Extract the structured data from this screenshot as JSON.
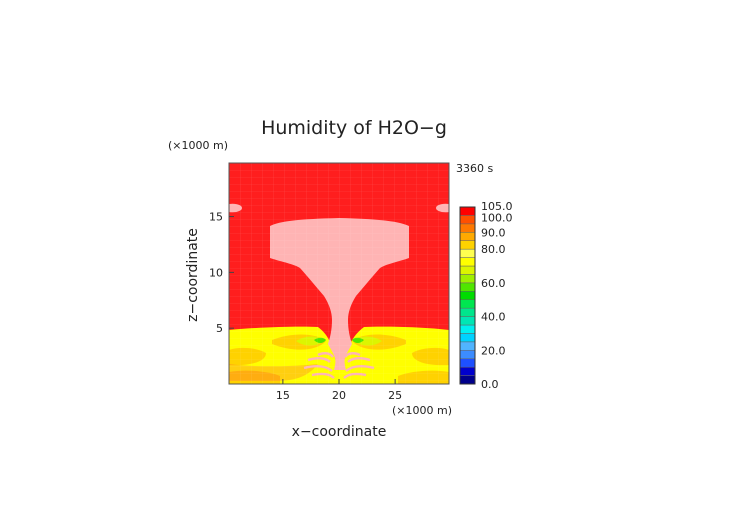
{
  "chart_data": {
    "type": "heatmap",
    "title": "Humidity of H2O−g",
    "xlabel": "x−coordinate",
    "ylabel": "z−coordinate",
    "x_unit": "(×1000 m)",
    "y_unit": "(×1000 m)",
    "time_label": "3360 s",
    "xlim": [
      10.2,
      29.8
    ],
    "ylim": [
      0,
      19.8
    ],
    "x_ticks": [
      15,
      20,
      25
    ],
    "y_ticks": [
      5,
      10,
      15
    ],
    "colorbar": {
      "levels": [
        0,
        5,
        10,
        15,
        20,
        25,
        30,
        35,
        40,
        45,
        50,
        55,
        60,
        65,
        70,
        75,
        80,
        85,
        90,
        95,
        100,
        105
      ],
      "colors": [
        "#00008b",
        "#0000cd",
        "#1e50ff",
        "#3c8cff",
        "#50b4ff",
        "#00d2ff",
        "#00f0f0",
        "#00e6b4",
        "#00e68c",
        "#00e650",
        "#00dc00",
        "#50e600",
        "#a0f000",
        "#dcf500",
        "#ffff00",
        "#ffff50",
        "#ffd200",
        "#ffaa00",
        "#ff7800",
        "#ff5000",
        "#ff0000"
      ],
      "tick_labels": [
        "0.0",
        "20.0",
        "40.0",
        "60.0",
        "80.0",
        "90.0",
        "100.0",
        "105.0"
      ]
    }
  }
}
